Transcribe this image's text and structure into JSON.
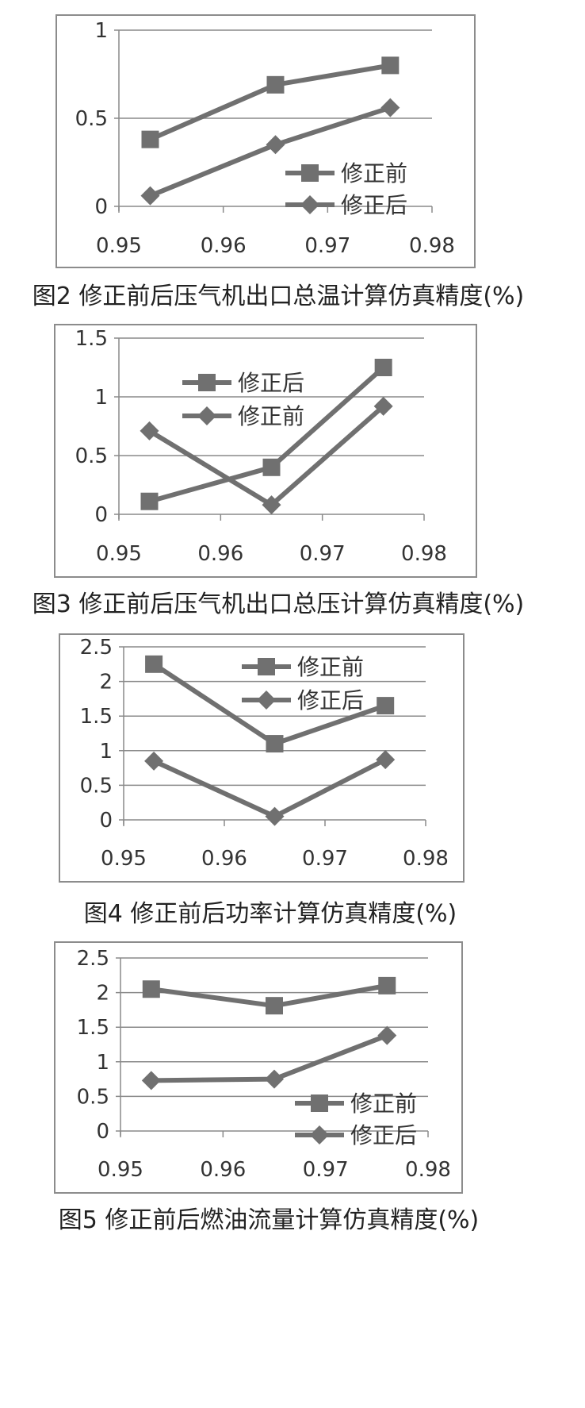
{
  "colors": {
    "series": "#707070",
    "grid": "#8a8a8a",
    "axis": "#8a8a8a",
    "frame": "#8c8c8c"
  },
  "chart_data": [
    {
      "type": "line",
      "title": "图2 修正前后压气机出口总温计算仿真精度(%)",
      "x": [
        0.953,
        0.965,
        0.976
      ],
      "xlim": [
        0.95,
        0.98
      ],
      "ylim": [
        0,
        1
      ],
      "xticks": [
        "0.95",
        "0.96",
        "0.97",
        "0.98"
      ],
      "yticks": [
        "0",
        "0.5",
        "1"
      ],
      "grid": true,
      "legend_position": "lower-right",
      "series": [
        {
          "name": "修正前",
          "marker": "square",
          "values": [
            0.38,
            0.69,
            0.8
          ]
        },
        {
          "name": "修正后",
          "marker": "diamond",
          "values": [
            0.06,
            0.35,
            0.56
          ]
        }
      ]
    },
    {
      "type": "line",
      "title": "图3 修正前后压气机出口总压计算仿真精度(%)",
      "x": [
        0.953,
        0.965,
        0.976
      ],
      "xlim": [
        0.95,
        0.98
      ],
      "ylim": [
        0,
        1.5
      ],
      "xticks": [
        "0.95",
        "0.96",
        "0.97",
        "0.98"
      ],
      "yticks": [
        "0",
        "0.5",
        "1",
        "1.5"
      ],
      "grid": true,
      "legend_position": "upper-left",
      "series": [
        {
          "name": "修正后",
          "marker": "square",
          "values": [
            0.11,
            0.4,
            1.25
          ]
        },
        {
          "name": "修正前",
          "marker": "diamond",
          "values": [
            0.71,
            0.08,
            0.92
          ]
        }
      ]
    },
    {
      "type": "line",
      "title": "图4 修正前后功率计算仿真精度(%)",
      "x": [
        0.953,
        0.965,
        0.976
      ],
      "xlim": [
        0.95,
        0.98
      ],
      "ylim": [
        0,
        2.5
      ],
      "xticks": [
        "0.95",
        "0.96",
        "0.97",
        "0.98"
      ],
      "yticks": [
        "0",
        "0.5",
        "1",
        "1.5",
        "2",
        "2.5"
      ],
      "grid": true,
      "legend_position": "upper-right",
      "series": [
        {
          "name": "修正前",
          "marker": "square",
          "values": [
            2.25,
            1.1,
            1.65
          ]
        },
        {
          "name": "修正后",
          "marker": "diamond",
          "values": [
            0.85,
            0.05,
            0.87
          ]
        }
      ]
    },
    {
      "type": "line",
      "title": "图5 修正前后燃油流量计算仿真精度(%)",
      "x": [
        0.953,
        0.965,
        0.976
      ],
      "xlim": [
        0.95,
        0.98
      ],
      "ylim": [
        0,
        2.5
      ],
      "xticks": [
        "0.95",
        "0.96",
        "0.97",
        "0.98"
      ],
      "yticks": [
        "0",
        "0.5",
        "1",
        "1.5",
        "2",
        "2.5"
      ],
      "grid": true,
      "legend_position": "lower-right",
      "series": [
        {
          "name": "修正前",
          "marker": "square",
          "values": [
            2.05,
            1.81,
            2.1
          ]
        },
        {
          "name": "修正后",
          "marker": "diamond",
          "values": [
            0.73,
            0.75,
            1.38
          ]
        }
      ]
    }
  ]
}
